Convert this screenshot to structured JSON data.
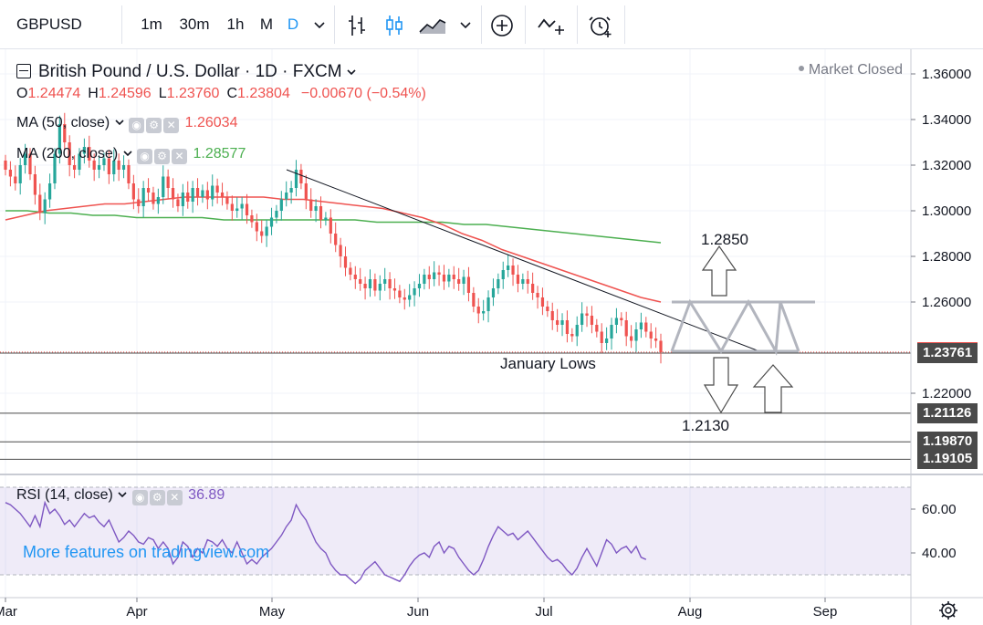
{
  "toolbar": {
    "symbol": "GBPUSD",
    "intervals": [
      "1m",
      "30m",
      "1h",
      "M",
      "D"
    ],
    "active_interval": "D",
    "icons": [
      "chevron-down-icon",
      "bar-style-icon",
      "candle-style-icon",
      "area-style-icon",
      "chevron-down-icon",
      "add-indicator-icon",
      "compare-icon",
      "alert-icon"
    ]
  },
  "header": {
    "title": "British Pound / U.S. Dollar · 1D · FXCM",
    "open_label": "O",
    "open": "1.24474",
    "high_label": "H",
    "high": "1.24596",
    "low_label": "L",
    "low": "1.23760",
    "close_label": "C",
    "close": "1.23804",
    "change": "−0.00670 (−0.54%)",
    "market_status": "Market Closed"
  },
  "indicators": {
    "ma50": {
      "label": "MA (50, close)",
      "value": "1.26034",
      "color": "#ef5350"
    },
    "ma200": {
      "label": "MA (200, close)",
      "value": "1.28577",
      "color": "#4caf50"
    },
    "rsi": {
      "label": "RSI (14, close)",
      "value": "36.89",
      "color": "#7e57c2"
    }
  },
  "watermark": "More features on tradingview.com",
  "chart_data": {
    "type": "candlestick",
    "title": "British Pound / U.S. Dollar · 1D · FXCM",
    "x_ticks": [
      "Mar",
      "Apr",
      "May",
      "Jun",
      "Jul",
      "Aug",
      "Sep"
    ],
    "y_ticks": [
      "1.36000",
      "1.34000",
      "1.32000",
      "1.30000",
      "1.28000",
      "1.26000",
      "1.22000"
    ],
    "ylim": [
      1.185,
      1.37
    ],
    "price_tags": [
      {
        "value": 1.23804,
        "label": "1.23804",
        "color": "#ef5350"
      },
      {
        "value": 1.23761,
        "label": "1.23761",
        "color": "#4a4a4a"
      },
      {
        "value": 1.21126,
        "label": "1.21126",
        "color": "#4a4a4a"
      },
      {
        "value": 1.1987,
        "label": "1.19870",
        "color": "#4a4a4a"
      },
      {
        "value": 1.19105,
        "label": "1.19105",
        "color": "#4a4a4a"
      }
    ],
    "annotations": [
      {
        "text": "1.2850",
        "value": 1.285
      },
      {
        "text": "January Lows",
        "value": 1.2376
      },
      {
        "text": "1.2130",
        "value": 1.213
      }
    ],
    "candles_close": [
      1.318,
      1.315,
      1.312,
      1.32,
      1.325,
      1.316,
      1.307,
      1.299,
      1.305,
      1.312,
      1.325,
      1.338,
      1.33,
      1.32,
      1.318,
      1.325,
      1.328,
      1.322,
      1.318,
      1.32,
      1.323,
      1.316,
      1.322,
      1.318,
      1.32,
      1.312,
      1.305,
      1.302,
      1.31,
      1.308,
      1.303,
      1.306,
      1.315,
      1.31,
      1.305,
      1.302,
      1.308,
      1.304,
      1.31,
      1.306,
      1.309,
      1.305,
      1.311,
      1.308,
      1.306,
      1.303,
      1.3,
      1.301,
      1.303,
      1.298,
      1.295,
      1.291,
      1.289,
      1.293,
      1.297,
      1.3,
      1.305,
      1.308,
      1.31,
      1.318,
      1.312,
      1.305,
      1.3,
      1.302,
      1.296,
      1.297,
      1.29,
      1.285,
      1.28,
      1.275,
      1.272,
      1.27,
      1.268,
      1.266,
      1.27,
      1.265,
      1.268,
      1.27,
      1.266,
      1.265,
      1.262,
      1.261,
      1.263,
      1.266,
      1.268,
      1.272,
      1.27,
      1.273,
      1.272,
      1.269,
      1.272,
      1.27,
      1.268,
      1.271,
      1.264,
      1.258,
      1.255,
      1.256,
      1.262,
      1.266,
      1.27,
      1.274,
      1.276,
      1.272,
      1.268,
      1.27,
      1.268,
      1.264,
      1.262,
      1.258,
      1.256,
      1.252,
      1.25,
      1.252,
      1.246,
      1.245,
      1.25,
      1.255,
      1.254,
      1.25,
      1.247,
      1.242,
      1.244,
      1.25,
      1.253,
      1.252,
      1.245,
      1.243,
      1.248,
      1.251,
      1.247,
      1.244,
      1.243,
      1.238
    ],
    "ma50": [
      1.296,
      1.298,
      1.3,
      1.301,
      1.302,
      1.303,
      1.303,
      1.304,
      1.305,
      1.306,
      1.306,
      1.306,
      1.306,
      1.306,
      1.305,
      1.305,
      1.304,
      1.303,
      1.302,
      1.301,
      1.299,
      1.297,
      1.294,
      1.29,
      1.287,
      1.283,
      1.28,
      1.277,
      1.274,
      1.271,
      1.268,
      1.265,
      1.262,
      1.26
    ],
    "ma200": [
      1.3,
      1.3,
      1.299,
      1.299,
      1.298,
      1.298,
      1.297,
      1.297,
      1.297,
      1.297,
      1.296,
      1.296,
      1.296,
      1.296,
      1.296,
      1.296,
      1.296,
      1.295,
      1.295,
      1.295,
      1.295,
      1.294,
      1.294,
      1.293,
      1.292,
      1.291,
      1.29,
      1.289,
      1.288,
      1.287,
      1.286
    ],
    "rsi": {
      "ylim": [
        20,
        75
      ],
      "y_ticks": [
        "60.00",
        "40.00"
      ],
      "band": [
        30,
        70
      ],
      "values": [
        63,
        62,
        60,
        58,
        55,
        52,
        57,
        52,
        63,
        58,
        60,
        57,
        53,
        55,
        52,
        55,
        58,
        56,
        57,
        54,
        52,
        55,
        50,
        45,
        47,
        50,
        48,
        45,
        44,
        47,
        46,
        42,
        45,
        42,
        35,
        38,
        45,
        43,
        38,
        42,
        40,
        46,
        45,
        43,
        46,
        42,
        40,
        45,
        40,
        35,
        37,
        35,
        38,
        40,
        42,
        45,
        48,
        52,
        55,
        62,
        58,
        55,
        50,
        45,
        42,
        40,
        35,
        32,
        30,
        30,
        28,
        26,
        28,
        32,
        34,
        36,
        33,
        30,
        29,
        28,
        27,
        30,
        34,
        37,
        39,
        40,
        38,
        43,
        45,
        40,
        43,
        42,
        38,
        35,
        32,
        30,
        32,
        37,
        43,
        48,
        52,
        50,
        48,
        49,
        46,
        48,
        50,
        47,
        44,
        41,
        38,
        36,
        37,
        35,
        32,
        30,
        33,
        38,
        42,
        38,
        34,
        40,
        46,
        44,
        40,
        42,
        43,
        40,
        43,
        38,
        37
      ]
    }
  }
}
